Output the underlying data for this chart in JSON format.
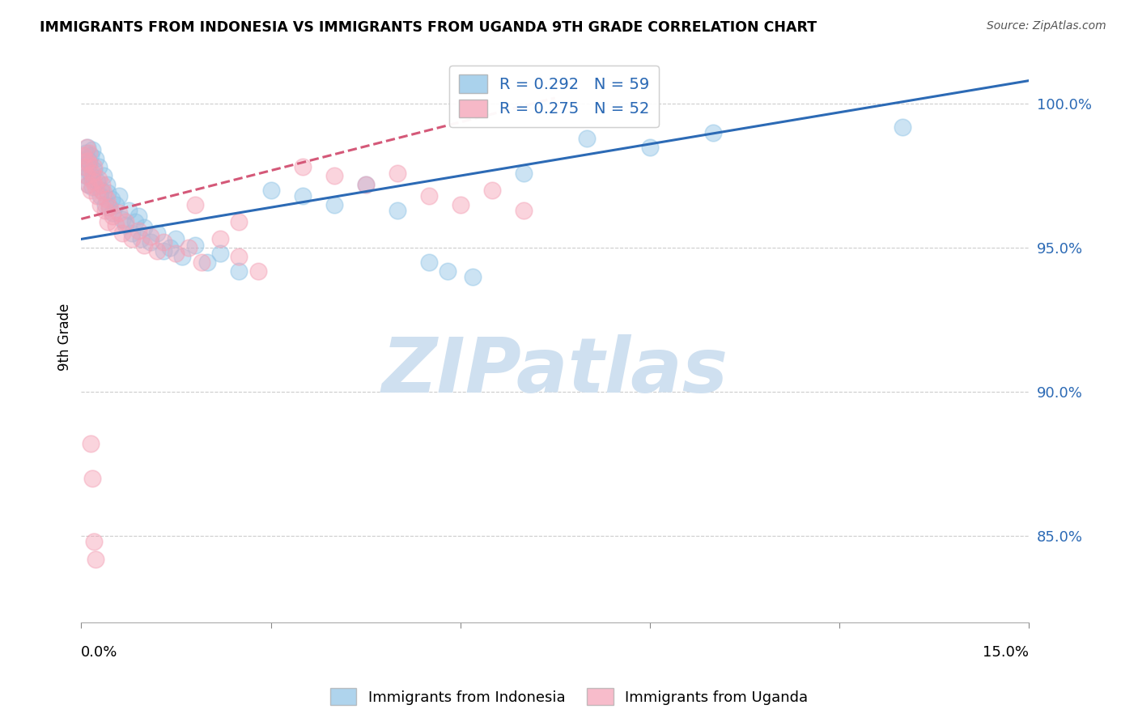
{
  "title": "IMMIGRANTS FROM INDONESIA VS IMMIGRANTS FROM UGANDA 9TH GRADE CORRELATION CHART",
  "source": "Source: ZipAtlas.com",
  "ylabel": "9th Grade",
  "yticks": [
    85.0,
    90.0,
    95.0,
    100.0
  ],
  "xmin": 0.0,
  "xmax": 15.0,
  "ymin": 82.0,
  "ymax": 101.8,
  "legend_r1": "R = 0.292",
  "legend_n1": "N = 59",
  "legend_r2": "R = 0.275",
  "legend_n2": "N = 52",
  "color_indonesia": "#8ec3e6",
  "color_uganda": "#f4a0b5",
  "color_line_indonesia": "#2c6ab5",
  "color_line_uganda": "#d45878",
  "watermark_text": "ZIPatlas",
  "watermark_color": "#cfe0f0",
  "indo_line_x": [
    0.0,
    15.0
  ],
  "indo_line_y": [
    95.3,
    100.8
  ],
  "uga_line_x": [
    0.0,
    7.5
  ],
  "uga_line_y": [
    96.0,
    100.2
  ],
  "indonesia_scatter": [
    [
      0.05,
      97.8
    ],
    [
      0.07,
      98.3
    ],
    [
      0.08,
      97.5
    ],
    [
      0.09,
      98.1
    ],
    [
      0.1,
      98.5
    ],
    [
      0.11,
      97.2
    ],
    [
      0.12,
      98.0
    ],
    [
      0.13,
      97.9
    ],
    [
      0.14,
      97.6
    ],
    [
      0.15,
      98.2
    ],
    [
      0.16,
      97.4
    ],
    [
      0.17,
      98.4
    ],
    [
      0.18,
      97.1
    ],
    [
      0.2,
      97.7
    ],
    [
      0.22,
      98.1
    ],
    [
      0.25,
      97.3
    ],
    [
      0.28,
      97.8
    ],
    [
      0.3,
      96.8
    ],
    [
      0.32,
      97.0
    ],
    [
      0.35,
      97.5
    ],
    [
      0.38,
      96.5
    ],
    [
      0.4,
      97.2
    ],
    [
      0.42,
      96.9
    ],
    [
      0.45,
      96.4
    ],
    [
      0.48,
      96.7
    ],
    [
      0.5,
      96.2
    ],
    [
      0.55,
      96.5
    ],
    [
      0.6,
      96.8
    ],
    [
      0.65,
      96.0
    ],
    [
      0.7,
      95.8
    ],
    [
      0.75,
      96.3
    ],
    [
      0.8,
      95.5
    ],
    [
      0.85,
      95.9
    ],
    [
      0.9,
      96.1
    ],
    [
      0.95,
      95.3
    ],
    [
      1.0,
      95.7
    ],
    [
      1.1,
      95.2
    ],
    [
      1.2,
      95.5
    ],
    [
      1.3,
      94.9
    ],
    [
      1.4,
      95.0
    ],
    [
      1.5,
      95.3
    ],
    [
      1.6,
      94.7
    ],
    [
      1.8,
      95.1
    ],
    [
      2.0,
      94.5
    ],
    [
      2.2,
      94.8
    ],
    [
      2.5,
      94.2
    ],
    [
      3.0,
      97.0
    ],
    [
      3.5,
      96.8
    ],
    [
      4.0,
      96.5
    ],
    [
      4.5,
      97.2
    ],
    [
      5.0,
      96.3
    ],
    [
      5.5,
      94.5
    ],
    [
      5.8,
      94.2
    ],
    [
      6.2,
      94.0
    ],
    [
      7.0,
      97.6
    ],
    [
      8.0,
      98.8
    ],
    [
      9.0,
      98.5
    ],
    [
      10.0,
      99.0
    ],
    [
      13.0,
      99.2
    ]
  ],
  "uganda_scatter": [
    [
      0.04,
      98.2
    ],
    [
      0.06,
      97.8
    ],
    [
      0.08,
      98.5
    ],
    [
      0.09,
      97.5
    ],
    [
      0.1,
      98.0
    ],
    [
      0.11,
      97.2
    ],
    [
      0.12,
      97.9
    ],
    [
      0.13,
      98.3
    ],
    [
      0.15,
      97.0
    ],
    [
      0.17,
      97.6
    ],
    [
      0.19,
      97.3
    ],
    [
      0.2,
      97.8
    ],
    [
      0.22,
      97.1
    ],
    [
      0.25,
      96.8
    ],
    [
      0.28,
      97.4
    ],
    [
      0.3,
      96.5
    ],
    [
      0.33,
      97.2
    ],
    [
      0.35,
      96.9
    ],
    [
      0.38,
      96.3
    ],
    [
      0.4,
      96.7
    ],
    [
      0.42,
      95.9
    ],
    [
      0.45,
      96.4
    ],
    [
      0.5,
      96.1
    ],
    [
      0.55,
      95.8
    ],
    [
      0.6,
      96.2
    ],
    [
      0.65,
      95.5
    ],
    [
      0.7,
      95.9
    ],
    [
      0.8,
      95.3
    ],
    [
      0.9,
      95.6
    ],
    [
      1.0,
      95.1
    ],
    [
      1.1,
      95.4
    ],
    [
      1.2,
      94.9
    ],
    [
      1.3,
      95.2
    ],
    [
      1.5,
      94.8
    ],
    [
      1.7,
      95.0
    ],
    [
      1.9,
      94.5
    ],
    [
      2.2,
      95.3
    ],
    [
      2.5,
      94.7
    ],
    [
      2.8,
      94.2
    ],
    [
      3.5,
      97.8
    ],
    [
      4.0,
      97.5
    ],
    [
      4.5,
      97.2
    ],
    [
      5.0,
      97.6
    ],
    [
      5.5,
      96.8
    ],
    [
      6.0,
      96.5
    ],
    [
      6.5,
      97.0
    ],
    [
      7.0,
      96.3
    ],
    [
      0.15,
      88.2
    ],
    [
      0.18,
      87.0
    ],
    [
      0.2,
      84.8
    ],
    [
      0.22,
      84.2
    ],
    [
      1.8,
      96.5
    ],
    [
      2.5,
      95.9
    ]
  ]
}
